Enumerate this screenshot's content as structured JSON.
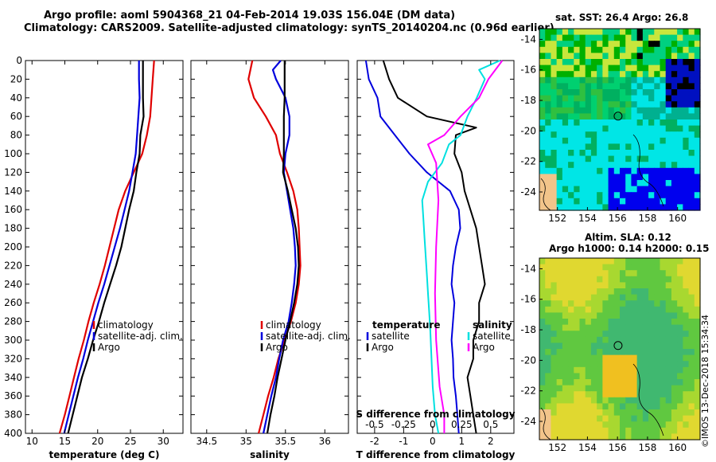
{
  "title": {
    "line1": "Argo profile: aoml 5904368_21 04-Feb-2014 19.03S 156.04E (DM data)",
    "line2": "Climatology: CARS2009. Satellite-adjusted climatology: synTS_20140204.nc (0.96d earlier)"
  },
  "colors": {
    "climatology": "#e00000",
    "satellite": "#0000dd",
    "argo": "#000000",
    "salinity_sat": "#00e0e0",
    "salinity_argo": "#ff00ff"
  },
  "chart_data": [
    {
      "id": "temperature",
      "type": "line",
      "xlabel": "temperature (deg C)",
      "ylabel": "",
      "xlim": [
        9,
        33
      ],
      "ylim": [
        400,
        0
      ],
      "xticks": [
        10,
        15,
        20,
        25,
        30
      ],
      "yticks": [
        0,
        20,
        40,
        60,
        80,
        100,
        120,
        140,
        160,
        180,
        200,
        220,
        240,
        260,
        280,
        300,
        320,
        340,
        360,
        380,
        400
      ],
      "legend": [
        "climatology",
        "satellite-adj. clim.",
        "Argo"
      ],
      "legend_loc": "lower-right",
      "series": [
        {
          "name": "climatology",
          "color": "#e00000",
          "points": [
            [
              28.6,
              0
            ],
            [
              28.4,
              20
            ],
            [
              28.2,
              40
            ],
            [
              28.0,
              60
            ],
            [
              27.5,
              80
            ],
            [
              26.8,
              100
            ],
            [
              25.5,
              120
            ],
            [
              24.2,
              140
            ],
            [
              23.2,
              160
            ],
            [
              22.5,
              180
            ],
            [
              21.8,
              200
            ],
            [
              21.1,
              220
            ],
            [
              20.3,
              240
            ],
            [
              19.4,
              260
            ],
            [
              18.6,
              280
            ],
            [
              17.9,
              300
            ],
            [
              17.1,
              320
            ],
            [
              16.4,
              340
            ],
            [
              15.7,
              360
            ],
            [
              15.0,
              380
            ],
            [
              14.2,
              400
            ]
          ]
        },
        {
          "name": "satellite-adj. clim.",
          "color": "#0000dd",
          "points": [
            [
              26.3,
              0
            ],
            [
              26.3,
              20
            ],
            [
              26.4,
              40
            ],
            [
              26.2,
              60
            ],
            [
              26.0,
              80
            ],
            [
              25.8,
              100
            ],
            [
              25.3,
              120
            ],
            [
              24.8,
              140
            ],
            [
              24.1,
              160
            ],
            [
              23.4,
              180
            ],
            [
              22.6,
              200
            ],
            [
              21.8,
              220
            ],
            [
              21.0,
              240
            ],
            [
              20.1,
              260
            ],
            [
              19.3,
              280
            ],
            [
              18.5,
              300
            ],
            [
              17.8,
              320
            ],
            [
              17.0,
              340
            ],
            [
              16.3,
              360
            ],
            [
              15.6,
              380
            ],
            [
              14.9,
              400
            ]
          ]
        },
        {
          "name": "Argo",
          "color": "#000000",
          "points": [
            [
              26.9,
              0
            ],
            [
              26.9,
              20
            ],
            [
              26.9,
              40
            ],
            [
              27.0,
              60
            ],
            [
              26.5,
              80
            ],
            [
              26.4,
              100
            ],
            [
              25.9,
              120
            ],
            [
              25.5,
              140
            ],
            [
              24.8,
              160
            ],
            [
              24.2,
              180
            ],
            [
              23.6,
              200
            ],
            [
              22.8,
              220
            ],
            [
              21.9,
              240
            ],
            [
              21.0,
              260
            ],
            [
              20.2,
              280
            ],
            [
              19.3,
              300
            ],
            [
              18.5,
              320
            ],
            [
              17.6,
              340
            ],
            [
              16.9,
              360
            ],
            [
              16.2,
              380
            ],
            [
              15.5,
              400
            ]
          ]
        }
      ]
    },
    {
      "id": "salinity",
      "type": "line",
      "xlabel": "salinity",
      "ylabel": "",
      "xlim": [
        34.3,
        36.3
      ],
      "ylim": [
        400,
        0
      ],
      "xticks": [
        34.5,
        35,
        35.5,
        36
      ],
      "xtick_labels": [
        "34.5",
        "35",
        "35.5",
        "36"
      ],
      "legend": [
        "climatology",
        "satellite-adj. clim.",
        "Argo"
      ],
      "legend_loc": "lower-right",
      "series": [
        {
          "name": "climatology",
          "color": "#e00000",
          "points": [
            [
              35.08,
              0
            ],
            [
              35.03,
              20
            ],
            [
              35.1,
              40
            ],
            [
              35.25,
              60
            ],
            [
              35.38,
              80
            ],
            [
              35.43,
              100
            ],
            [
              35.52,
              120
            ],
            [
              35.6,
              140
            ],
            [
              35.65,
              160
            ],
            [
              35.67,
              180
            ],
            [
              35.68,
              200
            ],
            [
              35.69,
              220
            ],
            [
              35.67,
              240
            ],
            [
              35.63,
              260
            ],
            [
              35.57,
              280
            ],
            [
              35.49,
              300
            ],
            [
              35.41,
              320
            ],
            [
              35.35,
              340
            ],
            [
              35.28,
              360
            ],
            [
              35.22,
              380
            ],
            [
              35.16,
              400
            ]
          ]
        },
        {
          "name": "satellite-adj. clim.",
          "color": "#0000dd",
          "points": [
            [
              35.44,
              0
            ],
            [
              35.34,
              10
            ],
            [
              35.38,
              20
            ],
            [
              35.5,
              40
            ],
            [
              35.55,
              60
            ],
            [
              35.55,
              80
            ],
            [
              35.5,
              100
            ],
            [
              35.48,
              120
            ],
            [
              35.52,
              140
            ],
            [
              35.56,
              160
            ],
            [
              35.6,
              180
            ],
            [
              35.62,
              200
            ],
            [
              35.63,
              220
            ],
            [
              35.61,
              240
            ],
            [
              35.58,
              260
            ],
            [
              35.54,
              280
            ],
            [
              35.47,
              300
            ],
            [
              35.42,
              320
            ],
            [
              35.38,
              340
            ],
            [
              35.32,
              360
            ],
            [
              35.27,
              380
            ],
            [
              35.22,
              400
            ]
          ]
        },
        {
          "name": "Argo",
          "color": "#000000",
          "points": [
            [
              35.49,
              0
            ],
            [
              35.49,
              20
            ],
            [
              35.49,
              40
            ],
            [
              35.48,
              60
            ],
            [
              35.48,
              80
            ],
            [
              35.48,
              100
            ],
            [
              35.47,
              120
            ],
            [
              35.53,
              140
            ],
            [
              35.58,
              160
            ],
            [
              35.63,
              180
            ],
            [
              35.66,
              200
            ],
            [
              35.67,
              220
            ],
            [
              35.65,
              240
            ],
            [
              35.61,
              260
            ],
            [
              35.56,
              280
            ],
            [
              35.5,
              300
            ],
            [
              35.45,
              320
            ],
            [
              35.4,
              340
            ],
            [
              35.36,
              360
            ],
            [
              35.31,
              380
            ],
            [
              35.27,
              400
            ]
          ]
        }
      ]
    },
    {
      "id": "differences",
      "type": "line",
      "xlabel": "T difference from climatology",
      "x2label": "S difference from climatology",
      "xlim": [
        -2.6,
        2.8
      ],
      "x2lim": [
        -0.65,
        0.7
      ],
      "ylim": [
        400,
        0
      ],
      "xticks": [
        -2,
        -1,
        0,
        1,
        2
      ],
      "x2ticks": [
        -0.5,
        -0.25,
        0,
        0.25,
        0.5
      ],
      "x2tick_labels": [
        "-0.5",
        "-0.25",
        "0",
        "0.25",
        "0.5"
      ],
      "legend_left_title": "temperature",
      "legend_right_title": "salinity",
      "legend_left": [
        "satellite",
        "Argo"
      ],
      "legend_right": [
        "satellite",
        "Argo"
      ],
      "series": [
        {
          "name": "temperature satellite",
          "color": "#0000dd",
          "axis": "T",
          "points": [
            [
              -2.3,
              0
            ],
            [
              -2.2,
              20
            ],
            [
              -1.9,
              40
            ],
            [
              -1.8,
              60
            ],
            [
              -1.3,
              80
            ],
            [
              -0.8,
              100
            ],
            [
              -0.2,
              120
            ],
            [
              0.6,
              140
            ],
            [
              0.9,
              160
            ],
            [
              0.95,
              180
            ],
            [
              0.8,
              200
            ],
            [
              0.7,
              220
            ],
            [
              0.65,
              240
            ],
            [
              0.75,
              260
            ],
            [
              0.7,
              280
            ],
            [
              0.65,
              300
            ],
            [
              0.7,
              320
            ],
            [
              0.72,
              340
            ],
            [
              0.8,
              360
            ],
            [
              0.85,
              380
            ],
            [
              0.9,
              400
            ]
          ]
        },
        {
          "name": "temperature Argo",
          "color": "#000000",
          "axis": "T",
          "points": [
            [
              -1.7,
              0
            ],
            [
              -1.5,
              20
            ],
            [
              -1.2,
              40
            ],
            [
              -0.2,
              60
            ],
            [
              1.5,
              72
            ],
            [
              0.8,
              80
            ],
            [
              0.75,
              100
            ],
            [
              1.0,
              120
            ],
            [
              1.1,
              140
            ],
            [
              1.3,
              160
            ],
            [
              1.5,
              180
            ],
            [
              1.6,
              200
            ],
            [
              1.7,
              220
            ],
            [
              1.8,
              240
            ],
            [
              1.6,
              260
            ],
            [
              1.6,
              280
            ],
            [
              1.4,
              300
            ],
            [
              1.4,
              320
            ],
            [
              1.2,
              340
            ],
            [
              1.3,
              360
            ],
            [
              1.4,
              380
            ],
            [
              1.5,
              400
            ]
          ]
        },
        {
          "name": "salinity satellite",
          "color": "#00e0e0",
          "axis": "S",
          "points": [
            [
              0.58,
              0
            ],
            [
              0.4,
              10
            ],
            [
              0.45,
              20
            ],
            [
              0.38,
              40
            ],
            [
              0.3,
              60
            ],
            [
              0.24,
              80
            ],
            [
              0.14,
              90
            ],
            [
              0.08,
              110
            ],
            [
              -0.04,
              130
            ],
            [
              -0.09,
              150
            ],
            [
              -0.08,
              170
            ],
            [
              -0.07,
              190
            ],
            [
              -0.06,
              210
            ],
            [
              -0.05,
              230
            ],
            [
              -0.04,
              250
            ],
            [
              -0.03,
              270
            ],
            [
              -0.02,
              290
            ],
            [
              -0.01,
              320
            ],
            [
              0.0,
              350
            ],
            [
              0.02,
              380
            ],
            [
              0.05,
              400
            ]
          ]
        },
        {
          "name": "salinity Argo",
          "color": "#ff00ff",
          "axis": "S",
          "points": [
            [
              0.6,
              0
            ],
            [
              0.48,
              20
            ],
            [
              0.4,
              40
            ],
            [
              0.24,
              60
            ],
            [
              0.1,
              80
            ],
            [
              -0.04,
              90
            ],
            [
              0.03,
              110
            ],
            [
              0.05,
              150
            ],
            [
              0.03,
              200
            ],
            [
              0.02,
              250
            ],
            [
              0.03,
              300
            ],
            [
              0.06,
              350
            ],
            [
              0.1,
              380
            ],
            [
              0.1,
              400
            ]
          ]
        }
      ]
    },
    {
      "id": "sst-map",
      "type": "heatmap",
      "title": "sat. SST: 26.4 Argo: 26.8",
      "xlim": [
        150.8,
        161.5
      ],
      "ylim": [
        -25.2,
        -13.3
      ],
      "xticks": [
        152,
        154,
        156,
        158,
        160
      ],
      "yticks": [
        -14,
        -16,
        -18,
        -20,
        -22,
        -24
      ],
      "marker": [
        156.04,
        -19.03
      ]
    },
    {
      "id": "sla-map",
      "type": "heatmap",
      "title_line1": "Altim. SLA: 0.12",
      "title_line2": "Argo h1000: 0.14 h2000: 0.15",
      "xlim": [
        150.8,
        161.5
      ],
      "ylim": [
        -25.2,
        -13.3
      ],
      "xticks": [
        152,
        154,
        156,
        158,
        160
      ],
      "yticks": [
        -14,
        -16,
        -18,
        -20,
        -22,
        -24
      ],
      "marker": [
        156.04,
        -19.03
      ]
    }
  ],
  "credit": "©IMOS 13-Dec-2018 15:34:34"
}
